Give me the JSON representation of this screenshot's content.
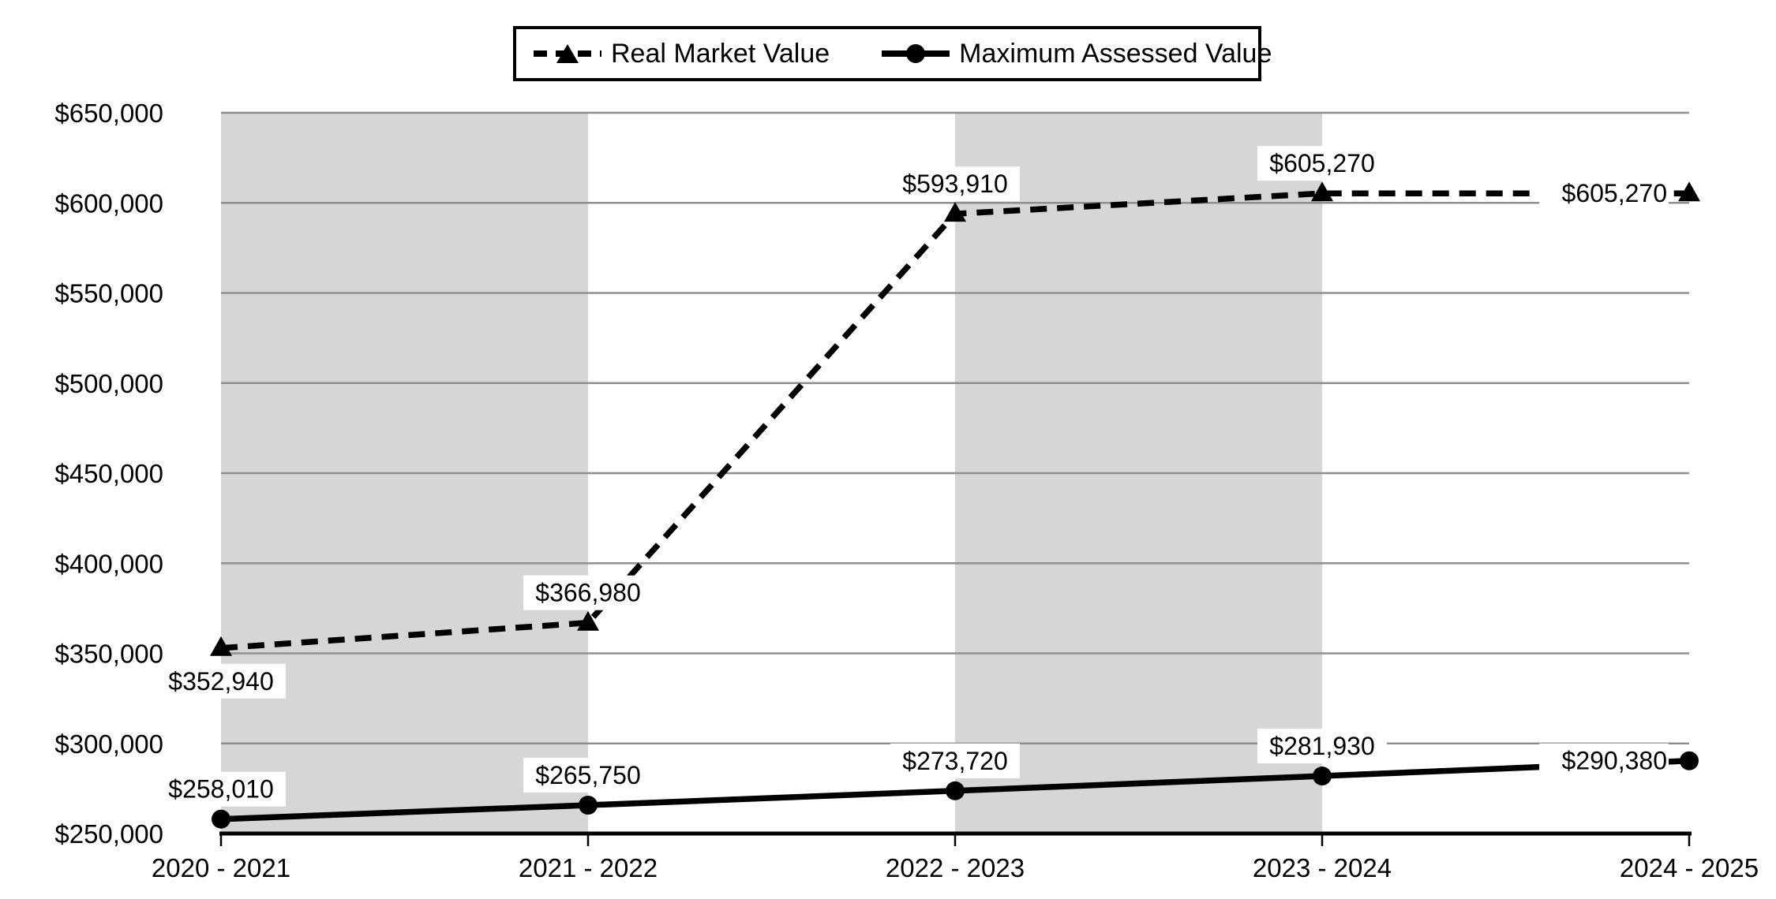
{
  "chart_data": {
    "type": "line",
    "title": "",
    "xlabel": "",
    "ylabel": "",
    "categories": [
      "2020 - 2021",
      "2021 - 2022",
      "2022 - 2023",
      "2023 - 2024",
      "2024 - 2025"
    ],
    "series": [
      {
        "name": "Real Market Value",
        "line_style": "dashed",
        "marker": "triangle",
        "values": [
          352940,
          366980,
          593910,
          605270,
          605270
        ],
        "labels": [
          "$352,940",
          "$366,980",
          "$593,910",
          "$605,270",
          "$605,270"
        ],
        "label_positions": [
          "below",
          "above",
          "above",
          "above",
          "left"
        ]
      },
      {
        "name": "Maximum Assessed Value",
        "line_style": "solid",
        "marker": "circle",
        "values": [
          258010,
          265750,
          273720,
          281930,
          290380
        ],
        "labels": [
          "$258,010",
          "$265,750",
          "$273,720",
          "$281,930",
          "$290,380"
        ],
        "label_positions": [
          "above",
          "above",
          "above",
          "above",
          "left"
        ]
      }
    ],
    "ylim": [
      250000,
      650000
    ],
    "ytick_step": 50000,
    "ytick_labels": [
      "$250,000",
      "$300,000",
      "$350,000",
      "$400,000",
      "$450,000",
      "$500,000",
      "$550,000",
      "$600,000",
      "$650,000"
    ],
    "shaded_bands": [
      [
        0,
        1
      ],
      [
        2,
        3
      ]
    ],
    "grid": "horizontal",
    "legend_position": "top",
    "colors": {
      "band": "#d6d6d6",
      "gridline": "#8f8f8f",
      "series": "#000000",
      "axis": "#000000",
      "label_bg": "#ffffff",
      "text": "#000000"
    }
  }
}
